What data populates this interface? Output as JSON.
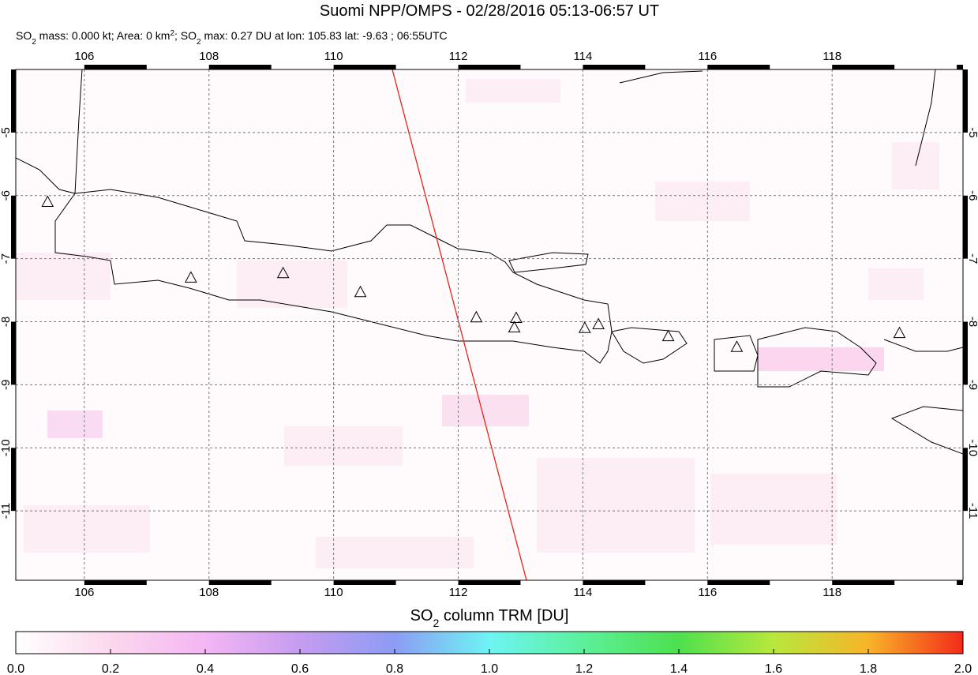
{
  "title": "Suomi NPP/OMPS - 02/28/2016 05:13-06:57 UT",
  "subtitle": [
    "SO",
    "2",
    " mass: 0.000 kt; Area: 0 km",
    "2",
    "; SO",
    "2",
    " max: 0.27 DU at lon: 105.83 lat: -9.63 ; 06:55UTC"
  ],
  "map": {
    "xlim": [
      104.9,
      120.1
    ],
    "ylim": [
      -12.1,
      -4.0
    ],
    "xticks": [
      106,
      108,
      110,
      112,
      114,
      116,
      118
    ],
    "yticks": [
      -5,
      -6,
      -7,
      -8,
      -9,
      -10,
      -11
    ],
    "volcanoes": [
      [
        105.41,
        -6.11
      ],
      [
        107.71,
        -7.31
      ],
      [
        109.19,
        -7.24
      ],
      [
        110.43,
        -7.54
      ],
      [
        112.29,
        -7.94
      ],
      [
        112.93,
        -7.95
      ],
      [
        112.9,
        -8.1
      ],
      [
        114.03,
        -8.11
      ],
      [
        114.25,
        -8.05
      ],
      [
        115.37,
        -8.24
      ],
      [
        116.47,
        -8.41
      ],
      [
        119.08,
        -8.19
      ]
    ]
  },
  "colorbar": {
    "title": [
      "SO",
      "2",
      " column TRM [DU]"
    ],
    "lim": [
      0,
      2.0
    ],
    "ticks": [
      {
        "value": 0,
        "label": "0.0"
      },
      0.2,
      0.4,
      0.6,
      0.8,
      {
        "value": 1,
        "label": "1.0"
      },
      1.2,
      1.4,
      1.6,
      1.8,
      {
        "value": 2,
        "label": "2.0"
      }
    ]
  }
}
